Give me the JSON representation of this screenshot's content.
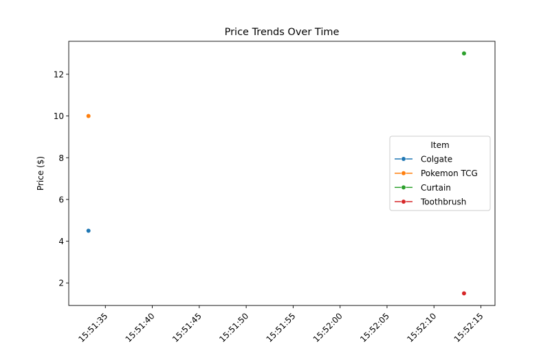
{
  "chart_data": {
    "type": "line",
    "title": "Price Trends Over Time",
    "xlabel": "",
    "ylabel": "Price ($)",
    "x_ticks": [
      "15:51:35",
      "15:51:40",
      "15:51:45",
      "15:51:50",
      "15:51:55",
      "15:52:00",
      "15:52:05",
      "15:52:10",
      "15:52:15"
    ],
    "x_tick_seconds": [
      35,
      40,
      45,
      50,
      55,
      60,
      65,
      70,
      75
    ],
    "xlim_seconds": [
      31.1,
      76.5
    ],
    "y_ticks": [
      2,
      4,
      6,
      8,
      10,
      12
    ],
    "ylim": [
      0.92,
      13.58
    ],
    "grid": false,
    "legend": {
      "title": "Item",
      "placement": "center-right"
    },
    "series": [
      {
        "name": "Colgate",
        "color": "#1f77b4",
        "points": [
          {
            "x": "15:51:33",
            "x_seconds": 33.2,
            "y": 4.5
          }
        ]
      },
      {
        "name": "Pokemon TCG",
        "color": "#ff7f0e",
        "points": [
          {
            "x": "15:51:33",
            "x_seconds": 33.2,
            "y": 10.0
          }
        ]
      },
      {
        "name": "Curtain",
        "color": "#2ca02c",
        "points": [
          {
            "x": "15:52:13",
            "x_seconds": 73.2,
            "y": 13.0
          }
        ]
      },
      {
        "name": "Toothbrush",
        "color": "#d62728",
        "points": [
          {
            "x": "15:52:13",
            "x_seconds": 73.2,
            "y": 1.5
          }
        ]
      }
    ]
  }
}
